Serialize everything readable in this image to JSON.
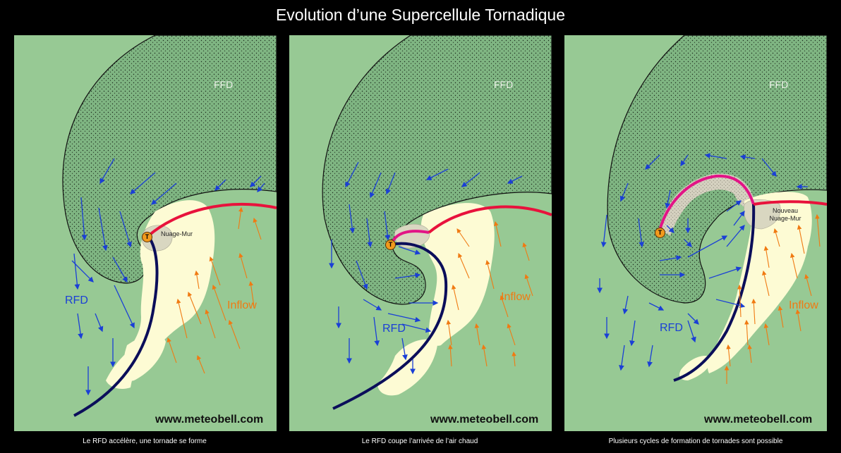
{
  "title": "Evolution d’une Supercellule Tornadique",
  "panels": [
    {
      "ffd": "FFD",
      "rfd": "RFD",
      "inflow": "Inflow",
      "wall_cloud": "Nuage-Mur",
      "tornado": "T",
      "site": "www.meteobell.com",
      "caption": "Le RFD accélère, une tornade se forme"
    },
    {
      "ffd": "FFD",
      "rfd": "RFD",
      "inflow": "Inflow",
      "tornado": "T",
      "site": "www.meteobell.com",
      "caption": "Le RFD coupe l’arrivée de l’air chaud"
    },
    {
      "ffd": "FFD",
      "rfd": "RFD",
      "inflow": "Inflow",
      "wall_cloud_new_1": "Nouveau",
      "wall_cloud_new_2": "Nuage-Mur",
      "tornado": "T",
      "site": "www.meteobell.com",
      "caption": "Plusieurs cycles de formation de tornades sont possible"
    }
  ],
  "colors": {
    "background": "#97c994",
    "ffd_fill": "#7fb582",
    "updraft": "#fdfbd4",
    "cold_front": "#0b0e5a",
    "warm_front": "#e8123c",
    "occlusion": "#e21486",
    "rfd_arrows": "#1a3fd6",
    "inflow_arrows": "#f07a12",
    "tornado": "#f29a1d"
  }
}
